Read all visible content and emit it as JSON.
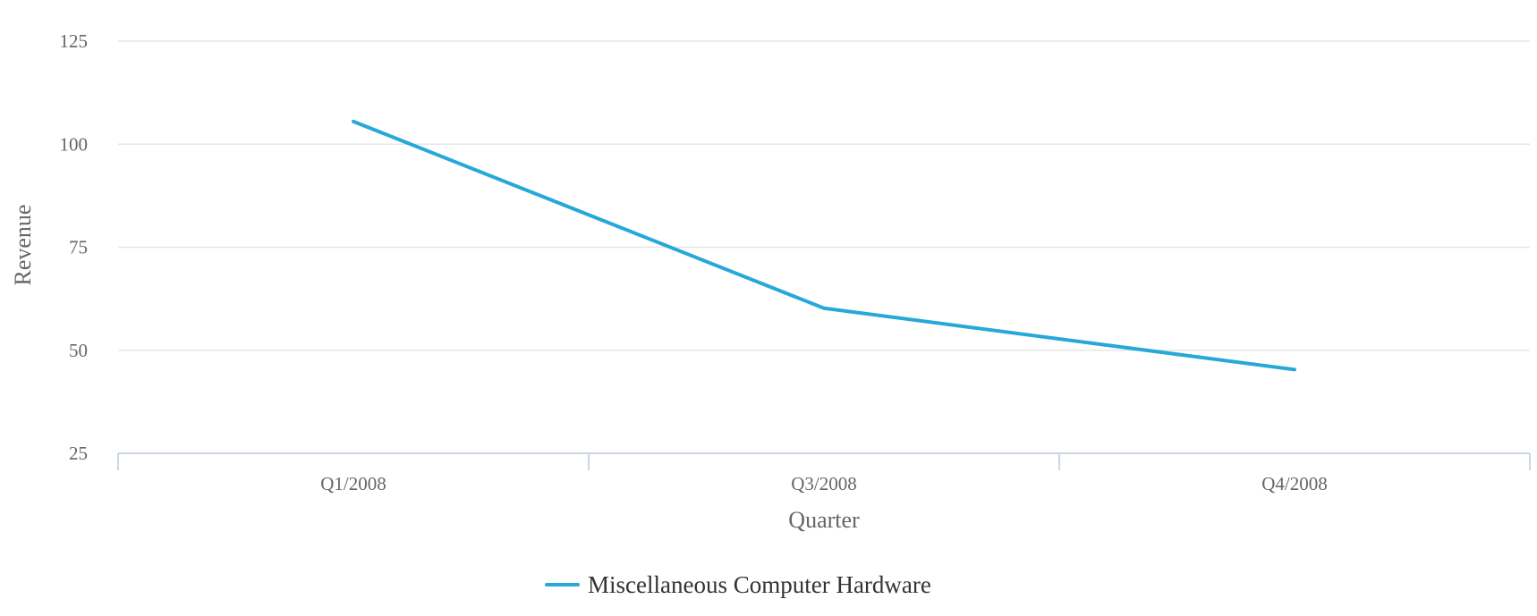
{
  "chart_data": {
    "type": "line",
    "categories": [
      "Q1/2008",
      "Q3/2008",
      "Q4/2008"
    ],
    "series": [
      {
        "name": "Miscellaneous Computer Hardware",
        "values": [
          105.5,
          60.2,
          45.3
        ],
        "color": "#27a8d8"
      }
    ],
    "ylim": [
      25,
      125
    ],
    "yticks": [
      "25",
      "50",
      "75",
      "100",
      "125"
    ],
    "xlabel": "Quarter",
    "ylabel": "Revenue",
    "title": "",
    "grid": true,
    "legend": "bottom-center"
  }
}
